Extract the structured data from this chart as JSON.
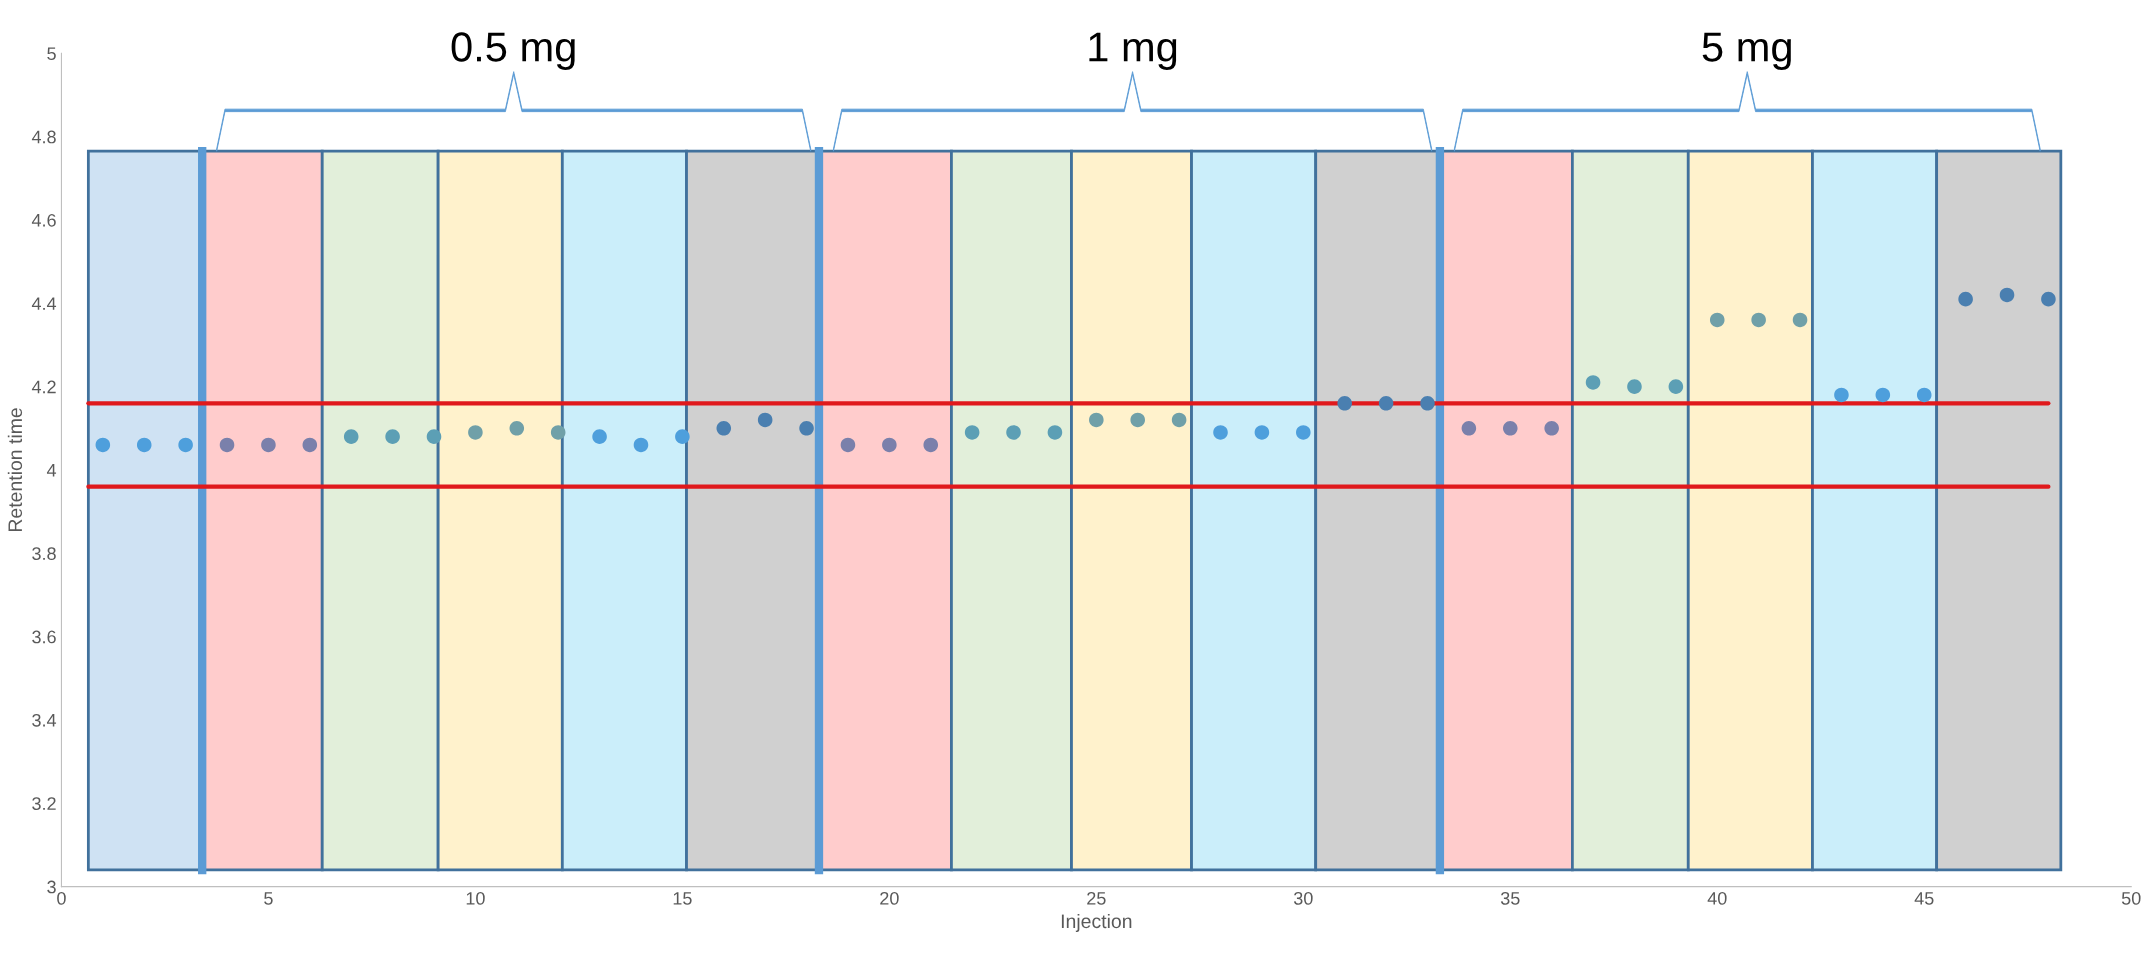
{
  "chart_data": {
    "type": "scatter",
    "xlabel": "Injection",
    "ylabel": "Retention time",
    "xlim": [
      0,
      50
    ],
    "xticks": [
      0,
      5,
      10,
      15,
      20,
      25,
      30,
      35,
      40,
      45,
      50
    ],
    "ylim": [
      3,
      5
    ],
    "yticks": [
      3,
      3.2,
      3.4,
      3.6,
      3.8,
      4,
      4.2,
      4.4,
      4.6,
      4.8,
      5
    ],
    "grid": false,
    "marker": "circle",
    "series": [
      {
        "x": [
          1,
          2,
          3,
          4,
          5,
          6,
          7,
          8,
          9,
          10,
          11,
          12,
          13,
          14,
          15,
          16,
          17,
          18,
          19,
          20,
          21,
          22,
          23,
          24,
          25,
          26,
          27,
          28,
          29,
          30,
          31,
          32,
          33,
          34,
          35,
          36,
          37,
          38,
          39,
          40,
          41,
          42,
          43,
          44,
          45,
          46,
          47,
          48
        ],
        "values": [
          4.06,
          4.06,
          4.06,
          4.06,
          4.06,
          4.06,
          4.08,
          4.08,
          4.08,
          4.09,
          4.1,
          4.09,
          4.08,
          4.06,
          4.08,
          4.1,
          4.12,
          4.1,
          4.06,
          4.06,
          4.06,
          4.09,
          4.09,
          4.09,
          4.12,
          4.12,
          4.12,
          4.09,
          4.09,
          4.09,
          4.16,
          4.16,
          4.16,
          4.1,
          4.1,
          4.1,
          4.21,
          4.2,
          4.2,
          4.36,
          4.36,
          4.36,
          4.18,
          4.18,
          4.18,
          4.41,
          4.42,
          4.41
        ],
        "colors": [
          "#4e9fdc",
          "#4e9fdc",
          "#4e9fdc",
          "#7a80ab",
          "#7a80ab",
          "#7a80ab",
          "#5c9fb5",
          "#5c9fb5",
          "#5c9fb5",
          "#70a0a8",
          "#70a0a8",
          "#70a0a8",
          "#4e9fdc",
          "#4e9fdc",
          "#4e9fdc",
          "#4a7fb0",
          "#4a7fb0",
          "#4a7fb0",
          "#7a80ab",
          "#7a80ab",
          "#7a80ab",
          "#5c9fb5",
          "#5c9fb5",
          "#5c9fb5",
          "#70a0a8",
          "#70a0a8",
          "#70a0a8",
          "#4e9fdc",
          "#4e9fdc",
          "#4e9fdc",
          "#4a7fb0",
          "#4a7fb0",
          "#4a7fb0",
          "#7a80ab",
          "#7a80ab",
          "#7a80ab",
          "#5c9fb5",
          "#5c9fb5",
          "#5c9fb5",
          "#70a0a8",
          "#70a0a8",
          "#70a0a8",
          "#4e9fdc",
          "#4e9fdc",
          "#4e9fdc",
          "#4a7fb0",
          "#4a7fb0",
          "#4a7fb0"
        ]
      }
    ],
    "ref_lines": [
      {
        "axis": "y",
        "value": 4.16,
        "color": "#e0191c"
      },
      {
        "axis": "y",
        "value": 3.96,
        "color": "#e0191c"
      },
      {
        "axis": "x",
        "value": 3.4,
        "color": "#5b9bd5"
      },
      {
        "axis": "x",
        "value": 18.3,
        "color": "#5b9bd5"
      },
      {
        "axis": "x",
        "value": 33.3,
        "color": "#5b9bd5"
      }
    ],
    "bands": [
      {
        "axis": "x",
        "from": 0.65,
        "to": 3.4,
        "color": "#cfe2f3"
      },
      {
        "axis": "x",
        "from": 3.4,
        "to": 6.3,
        "color": "#ffcccc"
      },
      {
        "axis": "x",
        "from": 6.3,
        "to": 9.1,
        "color": "#e2efda"
      },
      {
        "axis": "x",
        "from": 9.1,
        "to": 12.1,
        "color": "#fff2cc"
      },
      {
        "axis": "x",
        "from": 12.1,
        "to": 15.1,
        "color": "#cbeefa"
      },
      {
        "axis": "x",
        "from": 15.1,
        "to": 18.3,
        "color": "#d0d0d0"
      },
      {
        "axis": "x",
        "from": 18.3,
        "to": 21.5,
        "color": "#ffcccc"
      },
      {
        "axis": "x",
        "from": 21.5,
        "to": 24.4,
        "color": "#e2efda"
      },
      {
        "axis": "x",
        "from": 24.4,
        "to": 27.3,
        "color": "#fff2cc"
      },
      {
        "axis": "x",
        "from": 27.3,
        "to": 30.3,
        "color": "#cbeefa"
      },
      {
        "axis": "x",
        "from": 30.3,
        "to": 33.3,
        "color": "#d0d0d0"
      },
      {
        "axis": "x",
        "from": 33.3,
        "to": 36.5,
        "color": "#ffcccc"
      },
      {
        "axis": "x",
        "from": 36.5,
        "to": 39.3,
        "color": "#e2efda"
      },
      {
        "axis": "x",
        "from": 39.3,
        "to": 42.3,
        "color": "#fff2cc"
      },
      {
        "axis": "x",
        "from": 42.3,
        "to": 45.3,
        "color": "#cbeefa"
      },
      {
        "axis": "x",
        "from": 45.3,
        "to": 48.3,
        "color": "#d0d0d0"
      }
    ],
    "annotations": [
      "0.5 mg",
      "1 mg",
      "5 mg"
    ]
  }
}
